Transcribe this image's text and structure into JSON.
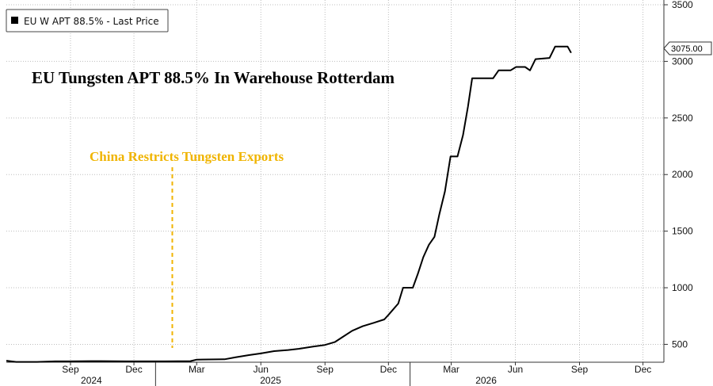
{
  "legend": {
    "label": "EU W APT 88.5% - Last Price"
  },
  "title": "EU Tungsten APT 88.5% In Warehouse Rotterdam",
  "annotation": {
    "text": "China Restricts Tungsten Exports",
    "date": "2025-01-25",
    "color": "#f0b400"
  },
  "last_value_label": "3075.00",
  "colors": {
    "line": "#000000",
    "grid": "#bdbdbd",
    "annotation": "#f0b400"
  },
  "chart_data": {
    "type": "line",
    "title": "EU Tungsten APT 88.5% In Warehouse Rotterdam",
    "xlabel": "",
    "ylabel": "",
    "xlim": [
      "2024-06-01",
      "2026-12-31"
    ],
    "ylim": [
      300,
      3500
    ],
    "yticks": [
      500,
      1000,
      1500,
      2000,
      2500,
      3000,
      3500
    ],
    "xticks": [
      {
        "date": "2024-09-01",
        "label": "Sep"
      },
      {
        "date": "2024-12-01",
        "label": "Dec"
      },
      {
        "date": "2025-03-01",
        "label": "Mar"
      },
      {
        "date": "2025-06-01",
        "label": "Jun"
      },
      {
        "date": "2025-09-01",
        "label": "Sep"
      },
      {
        "date": "2025-12-01",
        "label": "Dec"
      },
      {
        "date": "2026-03-01",
        "label": "Mar"
      },
      {
        "date": "2026-06-01",
        "label": "Jun"
      },
      {
        "date": "2026-09-01",
        "label": "Sep"
      },
      {
        "date": "2026-12-01",
        "label": "Dec"
      }
    ],
    "years": [
      {
        "date": "2024-10-01",
        "label": "2024"
      },
      {
        "date": "2025-06-15",
        "label": "2025"
      },
      {
        "date": "2026-04-20",
        "label": "2026"
      }
    ],
    "y_axis_side": "right",
    "grid": true,
    "legend_position": "top-left",
    "series": [
      {
        "name": "EU W APT 88.5% - Last Price",
        "points": [
          [
            "2024-06-01",
            355
          ],
          [
            "2024-06-15",
            345
          ],
          [
            "2024-07-15",
            345
          ],
          [
            "2024-08-10",
            350
          ],
          [
            "2024-09-01",
            350
          ],
          [
            "2024-10-01",
            352
          ],
          [
            "2024-11-20",
            350
          ],
          [
            "2024-12-15",
            350
          ],
          [
            "2025-01-15",
            350
          ],
          [
            "2025-02-20",
            352
          ],
          [
            "2025-03-01",
            365
          ],
          [
            "2025-04-10",
            368
          ],
          [
            "2025-04-25",
            385
          ],
          [
            "2025-05-15",
            405
          ],
          [
            "2025-06-01",
            420
          ],
          [
            "2025-06-20",
            440
          ],
          [
            "2025-07-10",
            450
          ],
          [
            "2025-07-25",
            460
          ],
          [
            "2025-08-15",
            480
          ],
          [
            "2025-09-01",
            495
          ],
          [
            "2025-09-15",
            520
          ],
          [
            "2025-09-25",
            560
          ],
          [
            "2025-10-10",
            620
          ],
          [
            "2025-10-25",
            660
          ],
          [
            "2025-11-10",
            690
          ],
          [
            "2025-11-25",
            720
          ],
          [
            "2025-12-01",
            760
          ],
          [
            "2025-12-15",
            860
          ],
          [
            "2025-12-22",
            1000
          ],
          [
            "2026-01-05",
            1000
          ],
          [
            "2026-01-12",
            1120
          ],
          [
            "2026-01-20",
            1270
          ],
          [
            "2026-01-28",
            1380
          ],
          [
            "2026-02-05",
            1450
          ],
          [
            "2026-02-12",
            1650
          ],
          [
            "2026-02-20",
            1850
          ],
          [
            "2026-02-28",
            2160
          ],
          [
            "2026-03-10",
            2160
          ],
          [
            "2026-03-18",
            2350
          ],
          [
            "2026-03-25",
            2600
          ],
          [
            "2026-03-31",
            2850
          ],
          [
            "2026-04-15",
            2850
          ],
          [
            "2026-04-30",
            2850
          ],
          [
            "2026-05-08",
            2920
          ],
          [
            "2026-05-25",
            2920
          ],
          [
            "2026-06-02",
            2950
          ],
          [
            "2026-06-15",
            2950
          ],
          [
            "2026-06-22",
            2920
          ],
          [
            "2026-06-30",
            3020
          ],
          [
            "2026-07-20",
            3030
          ],
          [
            "2026-07-28",
            3130
          ],
          [
            "2026-08-15",
            3130
          ],
          [
            "2026-08-20",
            3075
          ]
        ]
      }
    ]
  }
}
